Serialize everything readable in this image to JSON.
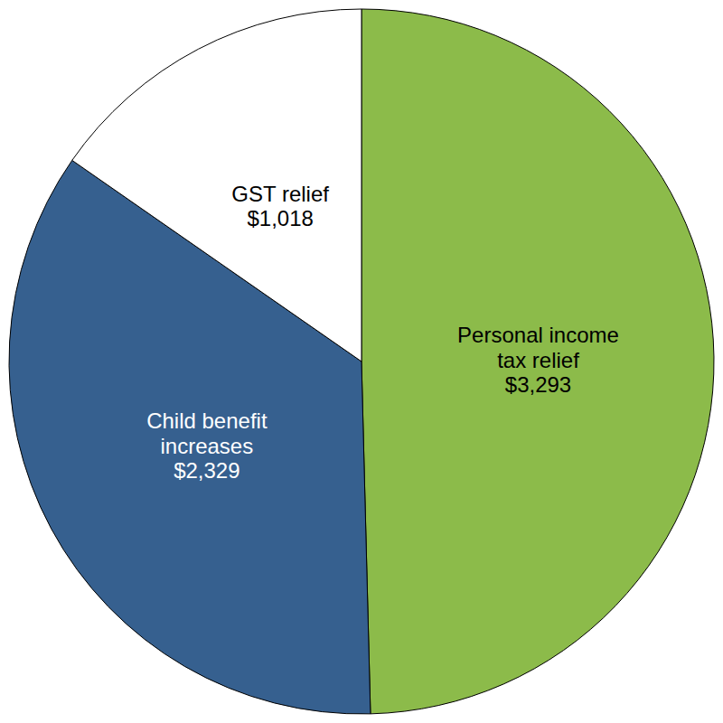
{
  "chart_data": {
    "type": "pie",
    "categories": [
      "Personal income tax relief",
      "Child benefit increases",
      "GST relief"
    ],
    "values": [
      3293,
      2329,
      1018
    ],
    "value_labels": [
      "$3,293",
      "$2,329",
      "$1,018"
    ],
    "colors": [
      "#8cbb4a",
      "#36608f",
      "#ffffff"
    ],
    "data_labels": true
  }
}
